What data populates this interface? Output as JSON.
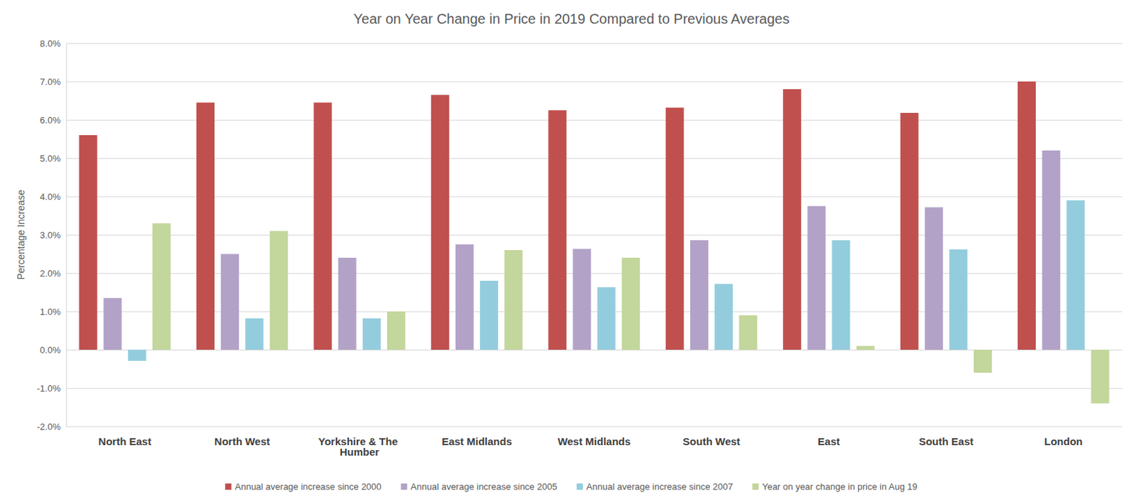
{
  "chart_data": {
    "type": "bar",
    "title": "Year on Year Change in Price in 2019 Compared to Previous Averages",
    "y_label": "Percentage Increase",
    "categories": [
      "North East",
      "North West",
      "Yorkshire & The Humber",
      "East Midlands",
      "West Midlands",
      "South West",
      "East",
      "South East",
      "London"
    ],
    "series": [
      {
        "name": "Annual average increase since 2000",
        "color": "#C0504D",
        "values": [
          5.6,
          6.45,
          6.45,
          6.65,
          6.25,
          6.32,
          6.8,
          6.18,
          7.0
        ]
      },
      {
        "name": "Annual average increase since 2005",
        "color": "#B3A2C7",
        "values": [
          1.35,
          2.5,
          2.4,
          2.75,
          2.63,
          2.86,
          3.75,
          3.72,
          5.2
        ]
      },
      {
        "name": "Annual average increase since 2007",
        "color": "#93CDDD",
        "values": [
          -0.29,
          0.82,
          0.82,
          1.8,
          1.63,
          1.72,
          2.86,
          2.62,
          3.9
        ]
      },
      {
        "name": "Year on year change in price in Aug 19",
        "color": "#C3D69B",
        "values": [
          3.3,
          3.1,
          1.0,
          2.6,
          2.4,
          0.9,
          0.1,
          -0.6,
          -1.4
        ]
      }
    ],
    "ylim": [
      -2,
      8
    ],
    "yticks": [
      {
        "value": -2,
        "label": "-2.0%"
      },
      {
        "value": -1,
        "label": "-1.0%"
      },
      {
        "value": 0,
        "label": "0.0%"
      },
      {
        "value": 1,
        "label": "1.0%"
      },
      {
        "value": 2,
        "label": "2.0%"
      },
      {
        "value": 3,
        "label": "3.0%"
      },
      {
        "value": 4,
        "label": "4.0%"
      },
      {
        "value": 5,
        "label": "5.0%"
      },
      {
        "value": 6,
        "label": "6.0%"
      },
      {
        "value": 7,
        "label": "7.0%"
      },
      {
        "value": 8,
        "label": "8.0%"
      }
    ],
    "grid": true,
    "legend": "bottom"
  }
}
